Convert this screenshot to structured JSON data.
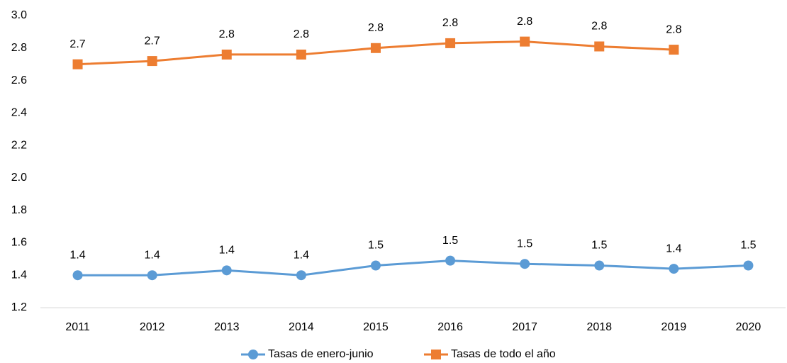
{
  "chart_data": {
    "type": "line",
    "categories": [
      "2011",
      "2012",
      "2013",
      "2014",
      "2015",
      "2016",
      "2017",
      "2018",
      "2019",
      "2020"
    ],
    "series": [
      {
        "name": "Tasas de enero-junio",
        "color": "#5b9bd5",
        "marker": "circle",
        "values": [
          1.4,
          1.4,
          1.43,
          1.4,
          1.46,
          1.49,
          1.47,
          1.46,
          1.44,
          1.46
        ],
        "value_labels": [
          "1.4",
          "1.4",
          "1.4",
          "1.4",
          "1.5",
          "1.5",
          "1.5",
          "1.5",
          "1.4",
          "1.5"
        ]
      },
      {
        "name": "Tasas de todo el año",
        "color": "#ed7d31",
        "marker": "square",
        "values": [
          2.7,
          2.72,
          2.76,
          2.76,
          2.8,
          2.83,
          2.84,
          2.81,
          2.79,
          null
        ],
        "value_labels": [
          "2.7",
          "2.7",
          "2.8",
          "2.8",
          "2.8",
          "2.8",
          "2.8",
          "2.8",
          "2.8",
          null
        ]
      }
    ],
    "ylim": [
      1.2,
      3.0
    ],
    "yticks": [
      1.2,
      1.4,
      1.6,
      1.8,
      {
        "value": 2.0,
        "label": "2.0"
      },
      2.2,
      2.4,
      2.6,
      2.8,
      {
        "value": 3.0,
        "label": "3.0"
      }
    ],
    "grid": false,
    "legend": "bottom"
  }
}
